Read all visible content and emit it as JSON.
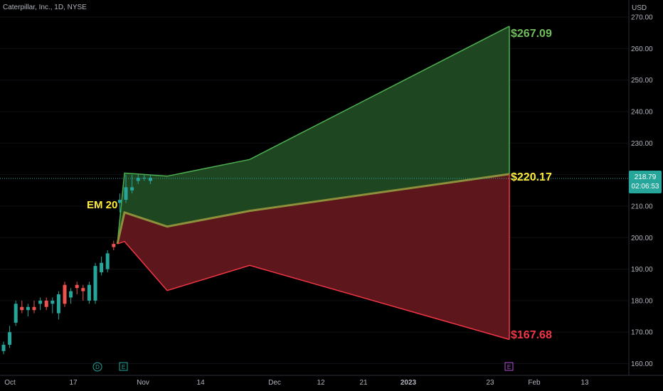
{
  "header": {
    "symbol": "Caterpillar, Inc., 1D, NYSE",
    "currency": "USD"
  },
  "last_price": {
    "value": "218.79",
    "countdown": "02:06:53"
  },
  "labels": {
    "em": "EM 20",
    "upper": "$267.09",
    "mid": "$220.17",
    "lower": "$167.68"
  },
  "markers": {
    "dividend": "D",
    "earnings_1": "E",
    "earnings_2": "E"
  },
  "colors": {
    "up": "#26a69a",
    "down": "#ef5350",
    "upper_band": "#4caf50",
    "lower_band": "#f23645",
    "mid_line": "#8d8f3a",
    "green_fill": "#1e4620",
    "red_fill": "#5c161c",
    "upper_label": "#6fbf5a",
    "mid_label": "#ffeb3b",
    "lower_label": "#f23645"
  },
  "chart_data": {
    "type": "candlestick",
    "title": "Caterpillar, Inc., 1D, NYSE",
    "ylabel": "USD",
    "ylim": [
      157.5,
      272.5
    ],
    "y_ticks": [
      270,
      260,
      250,
      240,
      230,
      220,
      210,
      200,
      190,
      180,
      170,
      160
    ],
    "x_ticks": [
      "Oct",
      "17",
      "Nov",
      "14",
      "Dec",
      "12",
      "21",
      "2023",
      "23",
      "Feb",
      "13"
    ],
    "last_price": 218.79,
    "candles": [
      {
        "o": 164,
        "h": 167,
        "l": 163,
        "c": 166
      },
      {
        "o": 166,
        "h": 172,
        "l": 165,
        "c": 170
      },
      {
        "o": 173,
        "h": 180,
        "l": 172,
        "c": 179
      },
      {
        "o": 178,
        "h": 180,
        "l": 176,
        "c": 177
      },
      {
        "o": 177,
        "h": 179,
        "l": 175,
        "c": 178
      },
      {
        "o": 178,
        "h": 180,
        "l": 176,
        "c": 177
      },
      {
        "o": 179,
        "h": 181,
        "l": 177,
        "c": 180
      },
      {
        "o": 180,
        "h": 181,
        "l": 177,
        "c": 178
      },
      {
        "o": 179,
        "h": 181,
        "l": 176,
        "c": 180
      },
      {
        "o": 176,
        "h": 183,
        "l": 174,
        "c": 182
      },
      {
        "o": 185,
        "h": 186,
        "l": 178,
        "c": 179
      },
      {
        "o": 181,
        "h": 184,
        "l": 179,
        "c": 183
      },
      {
        "o": 185,
        "h": 186,
        "l": 182,
        "c": 184
      },
      {
        "o": 184,
        "h": 185,
        "l": 180,
        "c": 183
      },
      {
        "o": 180,
        "h": 186,
        "l": 179,
        "c": 185
      },
      {
        "o": 180,
        "h": 192,
        "l": 179,
        "c": 191
      },
      {
        "o": 189,
        "h": 194,
        "l": 188,
        "c": 192
      },
      {
        "o": 190,
        "h": 196,
        "l": 189,
        "c": 195
      },
      {
        "o": 198,
        "h": 199,
        "l": 196,
        "c": 197
      },
      {
        "o": 211,
        "h": 214,
        "l": 208,
        "c": 212
      },
      {
        "o": 212,
        "h": 220,
        "l": 211,
        "c": 216
      },
      {
        "o": 215,
        "h": 220,
        "l": 214,
        "c": 216
      },
      {
        "o": 218,
        "h": 220,
        "l": 217,
        "c": 219
      },
      {
        "o": 219,
        "h": 220,
        "l": 218,
        "c": 219
      },
      {
        "o": 218,
        "h": 220,
        "l": 217,
        "c": 219
      }
    ],
    "expected_move": {
      "upper": [
        [
          0,
          198
        ],
        [
          1,
          220.5
        ],
        [
          2,
          219.5
        ],
        [
          3,
          224.8
        ],
        [
          4,
          267.09
        ]
      ],
      "mid": [
        [
          0,
          198
        ],
        [
          1,
          208
        ],
        [
          2,
          203.5
        ],
        [
          3,
          208.5
        ],
        [
          4,
          220.17
        ]
      ],
      "lower": [
        [
          0,
          198
        ],
        [
          1,
          198.8
        ],
        [
          2,
          183.2
        ],
        [
          3,
          191.2
        ],
        [
          4,
          167.68
        ]
      ]
    }
  }
}
